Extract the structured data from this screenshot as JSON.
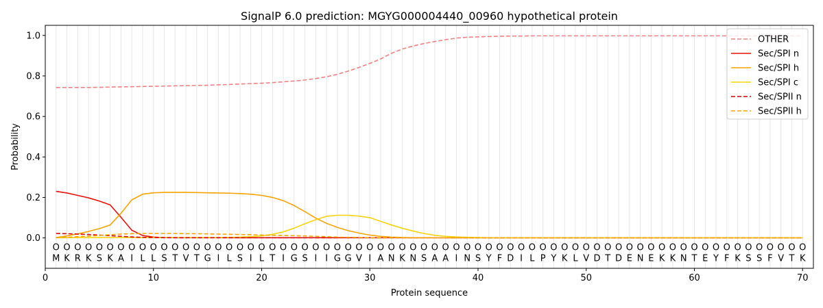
{
  "chart_data": {
    "type": "line",
    "title": "SignalP 6.0 prediction: MGYG000004440_00960 hypothetical protein",
    "xlabel": "Protein sequence",
    "ylabel": "Probability",
    "xlim": [
      0,
      71
    ],
    "ylim": [
      -0.15,
      1.05
    ],
    "x_ticks": [
      0,
      10,
      20,
      30,
      40,
      50,
      60,
      70
    ],
    "y_ticks": [
      0.0,
      0.2,
      0.4,
      0.6,
      0.8,
      1.0
    ],
    "x_tick_labels": [
      "0",
      "10",
      "20",
      "30",
      "40",
      "50",
      "60",
      "70"
    ],
    "y_tick_labels": [
      "0.0",
      "0.2",
      "0.4",
      "0.6",
      "0.8",
      "1.0"
    ],
    "grid": "vertical lines at each residue",
    "legend_position": "top-right",
    "sequence": [
      "M",
      "K",
      "R",
      "K",
      "S",
      "K",
      "A",
      "I",
      "L",
      "L",
      "S",
      "T",
      "V",
      "T",
      "G",
      "I",
      "L",
      "S",
      "I",
      "L",
      "T",
      "I",
      "G",
      "S",
      "I",
      "I",
      "G",
      "G",
      "V",
      "I",
      "A",
      "N",
      "K",
      "N",
      "S",
      "A",
      "A",
      "I",
      "N",
      "S",
      "Y",
      "F",
      "D",
      "I",
      "L",
      "P",
      "Y",
      "K",
      "L",
      "V",
      "D",
      "T",
      "D",
      "E",
      "N",
      "E",
      "K",
      "K",
      "N",
      "T",
      "E",
      "Y",
      "F",
      "K",
      "S",
      "S",
      "F",
      "V",
      "T",
      "K"
    ],
    "region_marker": "O",
    "series": [
      {
        "name": "OTHER",
        "color": "#f08080",
        "dash": "dashed",
        "values": [
          0.743,
          0.743,
          0.743,
          0.743,
          0.744,
          0.745,
          0.746,
          0.747,
          0.748,
          0.749,
          0.75,
          0.751,
          0.752,
          0.753,
          0.754,
          0.756,
          0.758,
          0.76,
          0.762,
          0.764,
          0.767,
          0.771,
          0.775,
          0.78,
          0.787,
          0.796,
          0.808,
          0.824,
          0.842,
          0.862,
          0.884,
          0.912,
          0.933,
          0.948,
          0.96,
          0.97,
          0.979,
          0.987,
          0.991,
          0.993,
          0.995,
          0.996,
          0.997,
          0.997,
          0.998,
          0.998,
          0.998,
          0.998,
          0.998,
          0.998,
          0.998,
          0.998,
          0.998,
          0.998,
          0.998,
          0.998,
          0.998,
          0.998,
          0.998,
          0.998,
          0.998,
          0.998,
          0.998,
          0.998,
          0.998,
          0.998,
          0.998,
          0.998,
          0.998,
          0.998
        ]
      },
      {
        "name": "Sec/SPI n",
        "color": "#e8100a",
        "dash": "solid",
        "values": [
          0.23,
          0.222,
          0.21,
          0.198,
          0.182,
          0.163,
          0.102,
          0.038,
          0.012,
          0.004,
          0.002,
          0.001,
          0.001,
          0.001,
          0.001,
          0.001,
          0.001,
          0.001,
          0.001,
          0.001,
          0.001,
          0.001,
          0.001,
          0.001,
          0.001,
          0.001,
          0.001,
          0.001,
          0.001,
          0.001,
          0.001,
          0.001,
          0.001,
          0.001,
          0.001,
          0.001,
          0.001,
          0.001,
          0.001,
          0.001,
          0.001,
          0.001,
          0.001,
          0.001,
          0.001,
          0.001,
          0.001,
          0.001,
          0.001,
          0.001,
          0.001,
          0.001,
          0.001,
          0.001,
          0.001,
          0.001,
          0.001,
          0.001,
          0.001,
          0.001,
          0.001,
          0.001,
          0.001,
          0.001,
          0.001,
          0.001,
          0.001,
          0.001,
          0.001,
          0.001
        ]
      },
      {
        "name": "Sec/SPI h",
        "color": "#f5a300",
        "dash": "solid",
        "values": [
          0.002,
          0.01,
          0.02,
          0.032,
          0.046,
          0.064,
          0.122,
          0.188,
          0.216,
          0.223,
          0.225,
          0.225,
          0.225,
          0.224,
          0.223,
          0.222,
          0.221,
          0.219,
          0.216,
          0.21,
          0.2,
          0.184,
          0.16,
          0.13,
          0.098,
          0.072,
          0.052,
          0.036,
          0.024,
          0.014,
          0.008,
          0.004,
          0.002,
          0.001,
          0.001,
          0.001,
          0.001,
          0.001,
          0.001,
          0.001,
          0.001,
          0.001,
          0.001,
          0.001,
          0.001,
          0.001,
          0.001,
          0.001,
          0.001,
          0.001,
          0.001,
          0.001,
          0.001,
          0.001,
          0.001,
          0.001,
          0.001,
          0.001,
          0.001,
          0.001,
          0.001,
          0.001,
          0.001,
          0.001,
          0.001,
          0.001,
          0.001,
          0.001,
          0.001,
          0.001
        ]
      },
      {
        "name": "Sec/SPI c",
        "color": "#f5d20a",
        "dash": "solid",
        "values": [
          0.001,
          0.001,
          0.002,
          0.002,
          0.002,
          0.002,
          0.002,
          0.002,
          0.002,
          0.002,
          0.002,
          0.002,
          0.002,
          0.002,
          0.002,
          0.002,
          0.003,
          0.004,
          0.006,
          0.01,
          0.018,
          0.03,
          0.048,
          0.07,
          0.09,
          0.107,
          0.112,
          0.112,
          0.108,
          0.1,
          0.082,
          0.064,
          0.048,
          0.034,
          0.022,
          0.013,
          0.008,
          0.005,
          0.003,
          0.002,
          0.001,
          0.001,
          0.001,
          0.001,
          0.001,
          0.001,
          0.001,
          0.001,
          0.001,
          0.001,
          0.001,
          0.001,
          0.001,
          0.001,
          0.001,
          0.001,
          0.001,
          0.001,
          0.001,
          0.001,
          0.001,
          0.001,
          0.001,
          0.001,
          0.001,
          0.001,
          0.001,
          0.001,
          0.001,
          0.001
        ]
      },
      {
        "name": "Sec/SPII n",
        "color": "#d40000",
        "dash": "dashed",
        "values": [
          0.022,
          0.021,
          0.019,
          0.017,
          0.014,
          0.011,
          0.008,
          0.005,
          0.003,
          0.002,
          0.001,
          0.001,
          0.001,
          0.001,
          0.001,
          0.001,
          0.001,
          0.001,
          0.001,
          0.001,
          0.001,
          0.001,
          0.001,
          0.001,
          0.001,
          0.001,
          0.001,
          0.001,
          0.001,
          0.001,
          0.001,
          0.001,
          0.001,
          0.001,
          0.001,
          0.001,
          0.001,
          0.001,
          0.001,
          0.001,
          0.001,
          0.001,
          0.001,
          0.001,
          0.001,
          0.001,
          0.001,
          0.001,
          0.001,
          0.001,
          0.001,
          0.001,
          0.001,
          0.001,
          0.001,
          0.001,
          0.001,
          0.001,
          0.001,
          0.001,
          0.001,
          0.001,
          0.001,
          0.001,
          0.001,
          0.001,
          0.001,
          0.001,
          0.001,
          0.001
        ]
      },
      {
        "name": "Sec/SPII h",
        "color": "#f5a300",
        "dash": "dashed",
        "values": [
          0.001,
          0.003,
          0.006,
          0.009,
          0.012,
          0.016,
          0.019,
          0.021,
          0.022,
          0.022,
          0.022,
          0.022,
          0.021,
          0.021,
          0.02,
          0.019,
          0.018,
          0.017,
          0.016,
          0.014,
          0.013,
          0.012,
          0.011,
          0.01,
          0.008,
          0.006,
          0.004,
          0.003,
          0.002,
          0.001,
          0.001,
          0.001,
          0.001,
          0.001,
          0.001,
          0.001,
          0.001,
          0.001,
          0.001,
          0.001,
          0.001,
          0.001,
          0.001,
          0.001,
          0.001,
          0.001,
          0.001,
          0.001,
          0.001,
          0.001,
          0.001,
          0.001,
          0.001,
          0.001,
          0.001,
          0.001,
          0.001,
          0.001,
          0.001,
          0.001,
          0.001,
          0.001,
          0.001,
          0.001,
          0.001,
          0.001,
          0.001,
          0.001,
          0.001,
          0.001
        ]
      }
    ]
  }
}
